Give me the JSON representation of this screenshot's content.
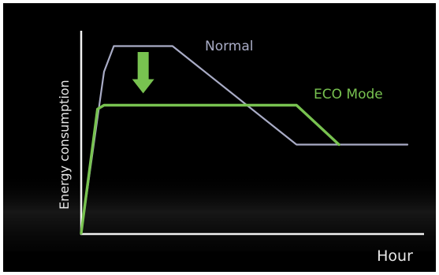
{
  "chart_data": {
    "type": "line",
    "title": "",
    "xlabel": "Hour",
    "ylabel": "Energy consumption",
    "xlim": [
      0,
      100
    ],
    "ylim": [
      0,
      100
    ],
    "grid": false,
    "legend": "inline labels",
    "series": [
      {
        "name": "Normal",
        "color": "#a9acc6",
        "points": [
          [
            0,
            0
          ],
          [
            7,
            82
          ],
          [
            10,
            95
          ],
          [
            28,
            95
          ],
          [
            66,
            45
          ],
          [
            100,
            45
          ]
        ]
      },
      {
        "name": "ECO Mode",
        "color": "#78c250",
        "points": [
          [
            0,
            0
          ],
          [
            5,
            63
          ],
          [
            7,
            65
          ],
          [
            66,
            65
          ],
          [
            79,
            45
          ]
        ]
      }
    ],
    "annotations": [
      {
        "type": "arrow-down",
        "color": "#78c250",
        "x": 19,
        "y_from": 92,
        "y_to": 71
      }
    ]
  }
}
